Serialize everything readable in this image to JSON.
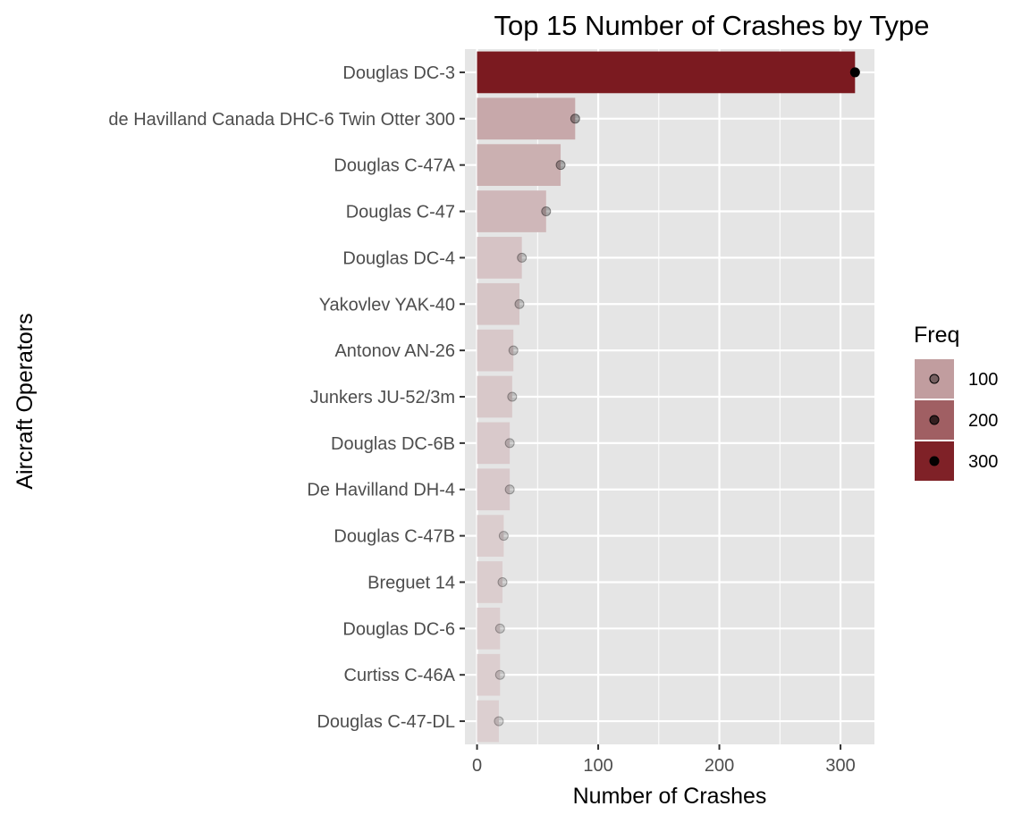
{
  "chart_data": {
    "type": "bar",
    "orientation": "horizontal",
    "title": "Top 15 Number of Crashes by Type",
    "xlabel": "Number of Crashes",
    "ylabel": "Aircraft Operators",
    "categories": [
      "Douglas DC-3",
      "de Havilland Canada DHC-6 Twin Otter 300",
      "Douglas C-47A",
      "Douglas C-47",
      "Douglas DC-4",
      "Yakovlev YAK-40",
      "Antonov AN-26",
      "Junkers JU-52/3m",
      "Douglas DC-6B",
      "De Havilland DH-4",
      "Douglas C-47B",
      "Breguet 14",
      "Douglas DC-6",
      "Curtiss C-46A",
      "Douglas C-47-DL"
    ],
    "values": [
      312,
      81,
      69,
      57,
      37,
      35,
      30,
      29,
      27,
      27,
      22,
      21,
      19,
      19,
      18
    ],
    "xlim": [
      -10,
      328
    ],
    "xticks": [
      0,
      100,
      200,
      300
    ],
    "grid": true,
    "legend": {
      "title": "Freq",
      "position": "right",
      "entries": [
        "100",
        "200",
        "300"
      ],
      "values": [
        100,
        200,
        300
      ]
    },
    "colors": {
      "bar_high": "#7b1a20",
      "bar_low": "#dccfd0",
      "panel_background": "#e5e5e5",
      "gridline": "#ffffff",
      "point": "#000000"
    }
  }
}
